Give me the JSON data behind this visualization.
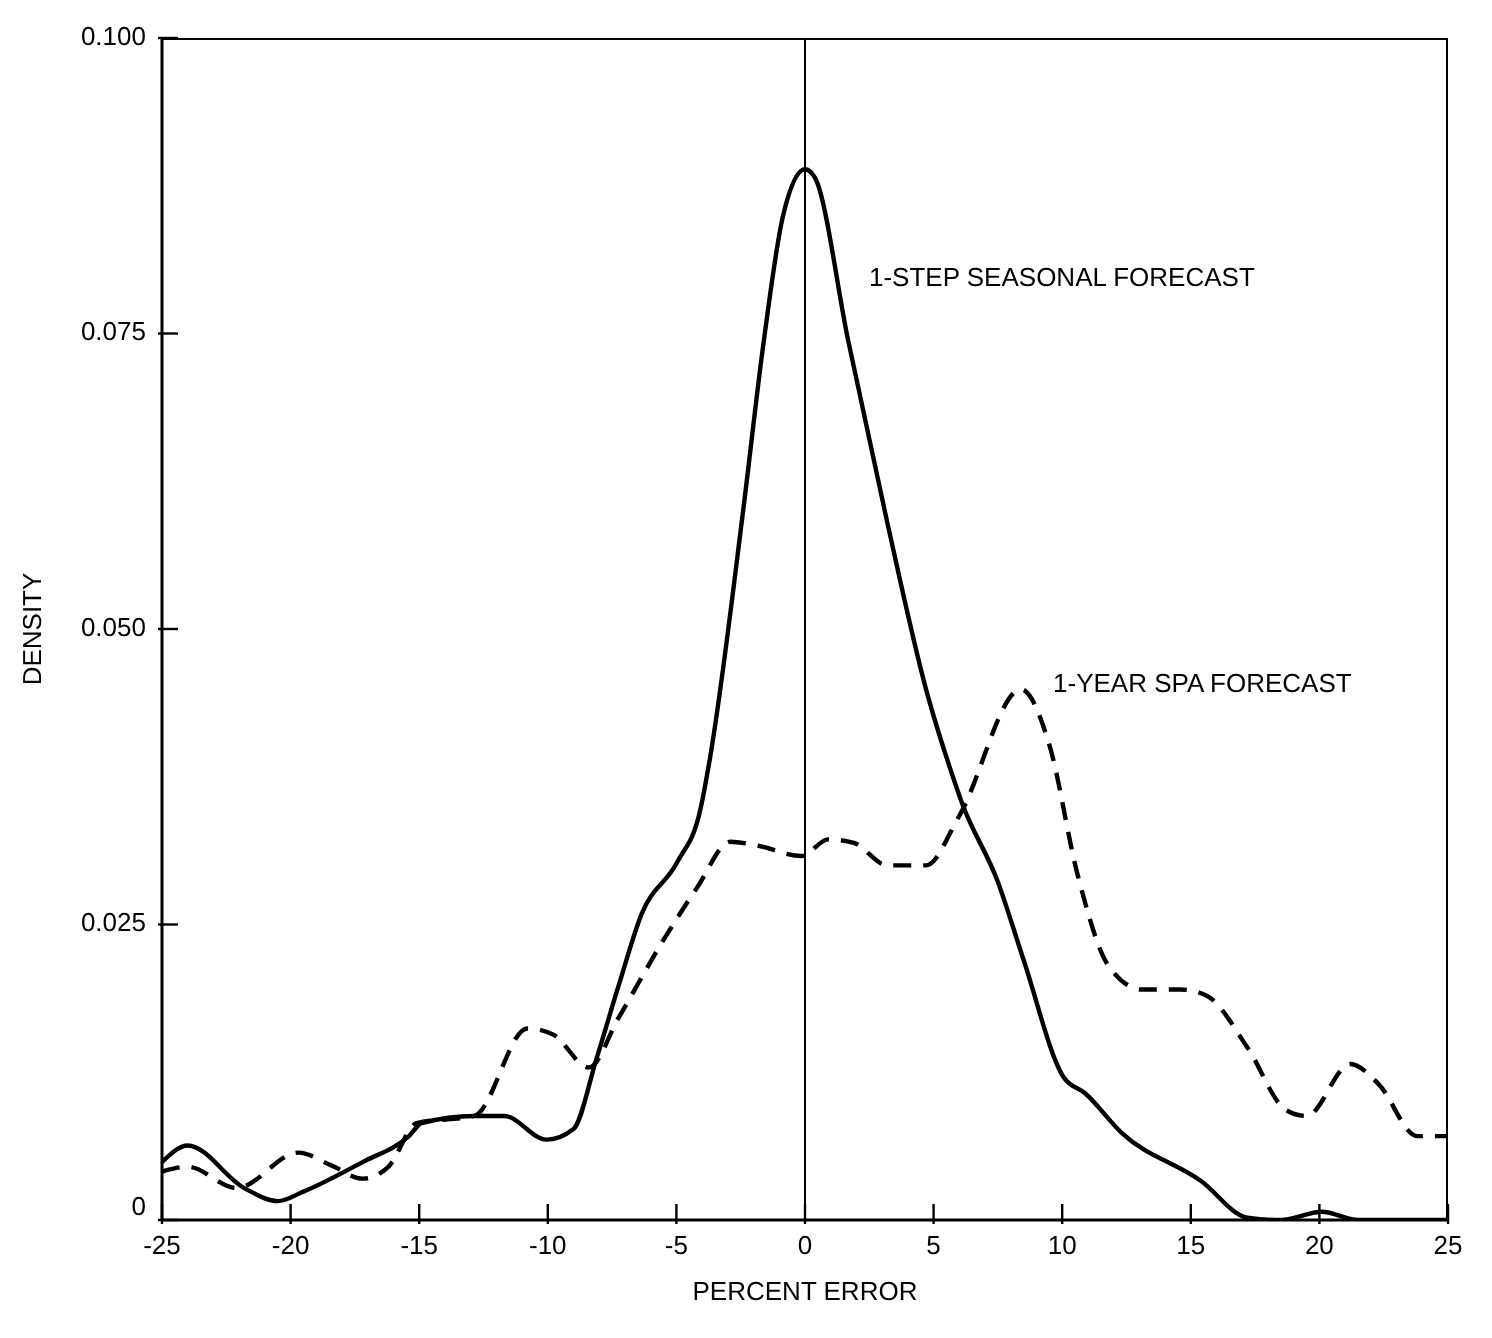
{
  "chart_data": {
    "type": "line",
    "xlabel": "PERCENT ERROR",
    "ylabel": "DENSITY",
    "xlim": [
      -25,
      25
    ],
    "xticks": [
      -25,
      -20,
      -15,
      -10,
      -5,
      0,
      5,
      10,
      15,
      20,
      25
    ],
    "ylim": [
      0,
      0.1
    ],
    "yticks": [
      {
        "value": 0,
        "label": "0"
      },
      {
        "value": 0.025,
        "label": "0.025"
      },
      {
        "value": 0.05,
        "label": "0.050"
      },
      {
        "value": 0.075,
        "label": "0.075"
      },
      {
        "value": 0.1,
        "label": "0.100"
      }
    ],
    "grid": false,
    "legend": false,
    "marker": "none",
    "ref_lines": [
      {
        "axis": "x",
        "value": 0,
        "color": "#000000"
      }
    ],
    "series": [
      {
        "name": "1-STEP SEASONAL FORECAST",
        "color": "#000000",
        "line_style": "solid",
        "x": [
          -25,
          -24,
          -21.8,
          -20.5,
          -19.5,
          -17.2,
          -15.4,
          -14.9,
          -12.85,
          -11.7,
          -10.05,
          -9,
          -8.1,
          -7.25,
          -6.35,
          -4.96,
          -4.07,
          -3.7,
          -2.4,
          -1.63,
          -0.86,
          0,
          0.38,
          1.68,
          3.2,
          4.73,
          5.75,
          6.1,
          7.5,
          8.5,
          10.05,
          10.9,
          12.3,
          15.4,
          17.2,
          18.5,
          20.1,
          21.5,
          25
        ],
        "values": [
          0.0049,
          0.0063,
          0.0027,
          0.0016,
          0.0024,
          0.0049,
          0.0071,
          0.0082,
          0.0088,
          0.0088,
          0.0068,
          0.0077,
          0.0137,
          0.0198,
          0.0259,
          0.0303,
          0.0347,
          0.039,
          0.0601,
          0.0739,
          0.0849,
          0.0889,
          0.0882,
          0.0744,
          0.059,
          0.0447,
          0.0375,
          0.0353,
          0.0286,
          0.022,
          0.0121,
          0.0107,
          0.0074,
          0.0033,
          0.0002,
          0,
          0.0007,
          0,
          0
        ]
      },
      {
        "name": "1-YEAR SPA FORECAST",
        "color": "#000000",
        "line_style": "dashed",
        "x": [
          -25,
          -24,
          -22.1,
          -19.7,
          -18.4,
          -17.2,
          -16.2,
          -15.1,
          -12.85,
          -10.8,
          -9.8,
          -8.4,
          -7.25,
          -5.5,
          -4.2,
          -2.9,
          -1.9,
          -0.13,
          0.9,
          1.9,
          3.2,
          4.7,
          6,
          8.4,
          9.5,
          10.6,
          11.8,
          13.1,
          14.6,
          15.6,
          17.2,
          18.7,
          19.5,
          21.2,
          22.3,
          23.8,
          25
        ],
        "values": [
          0.0041,
          0.0045,
          0.0027,
          0.0057,
          0.0046,
          0.0035,
          0.0045,
          0.0082,
          0.0088,
          0.0162,
          0.0157,
          0.0129,
          0.0171,
          0.0237,
          0.0281,
          0.032,
          0.0317,
          0.0308,
          0.0322,
          0.0319,
          0.03,
          0.03,
          0.0342,
          0.0449,
          0.0402,
          0.0292,
          0.0215,
          0.0195,
          0.0195,
          0.019,
          0.0146,
          0.0093,
          0.0088,
          0.0132,
          0.0115,
          0.0071,
          0.0071
        ]
      }
    ]
  }
}
